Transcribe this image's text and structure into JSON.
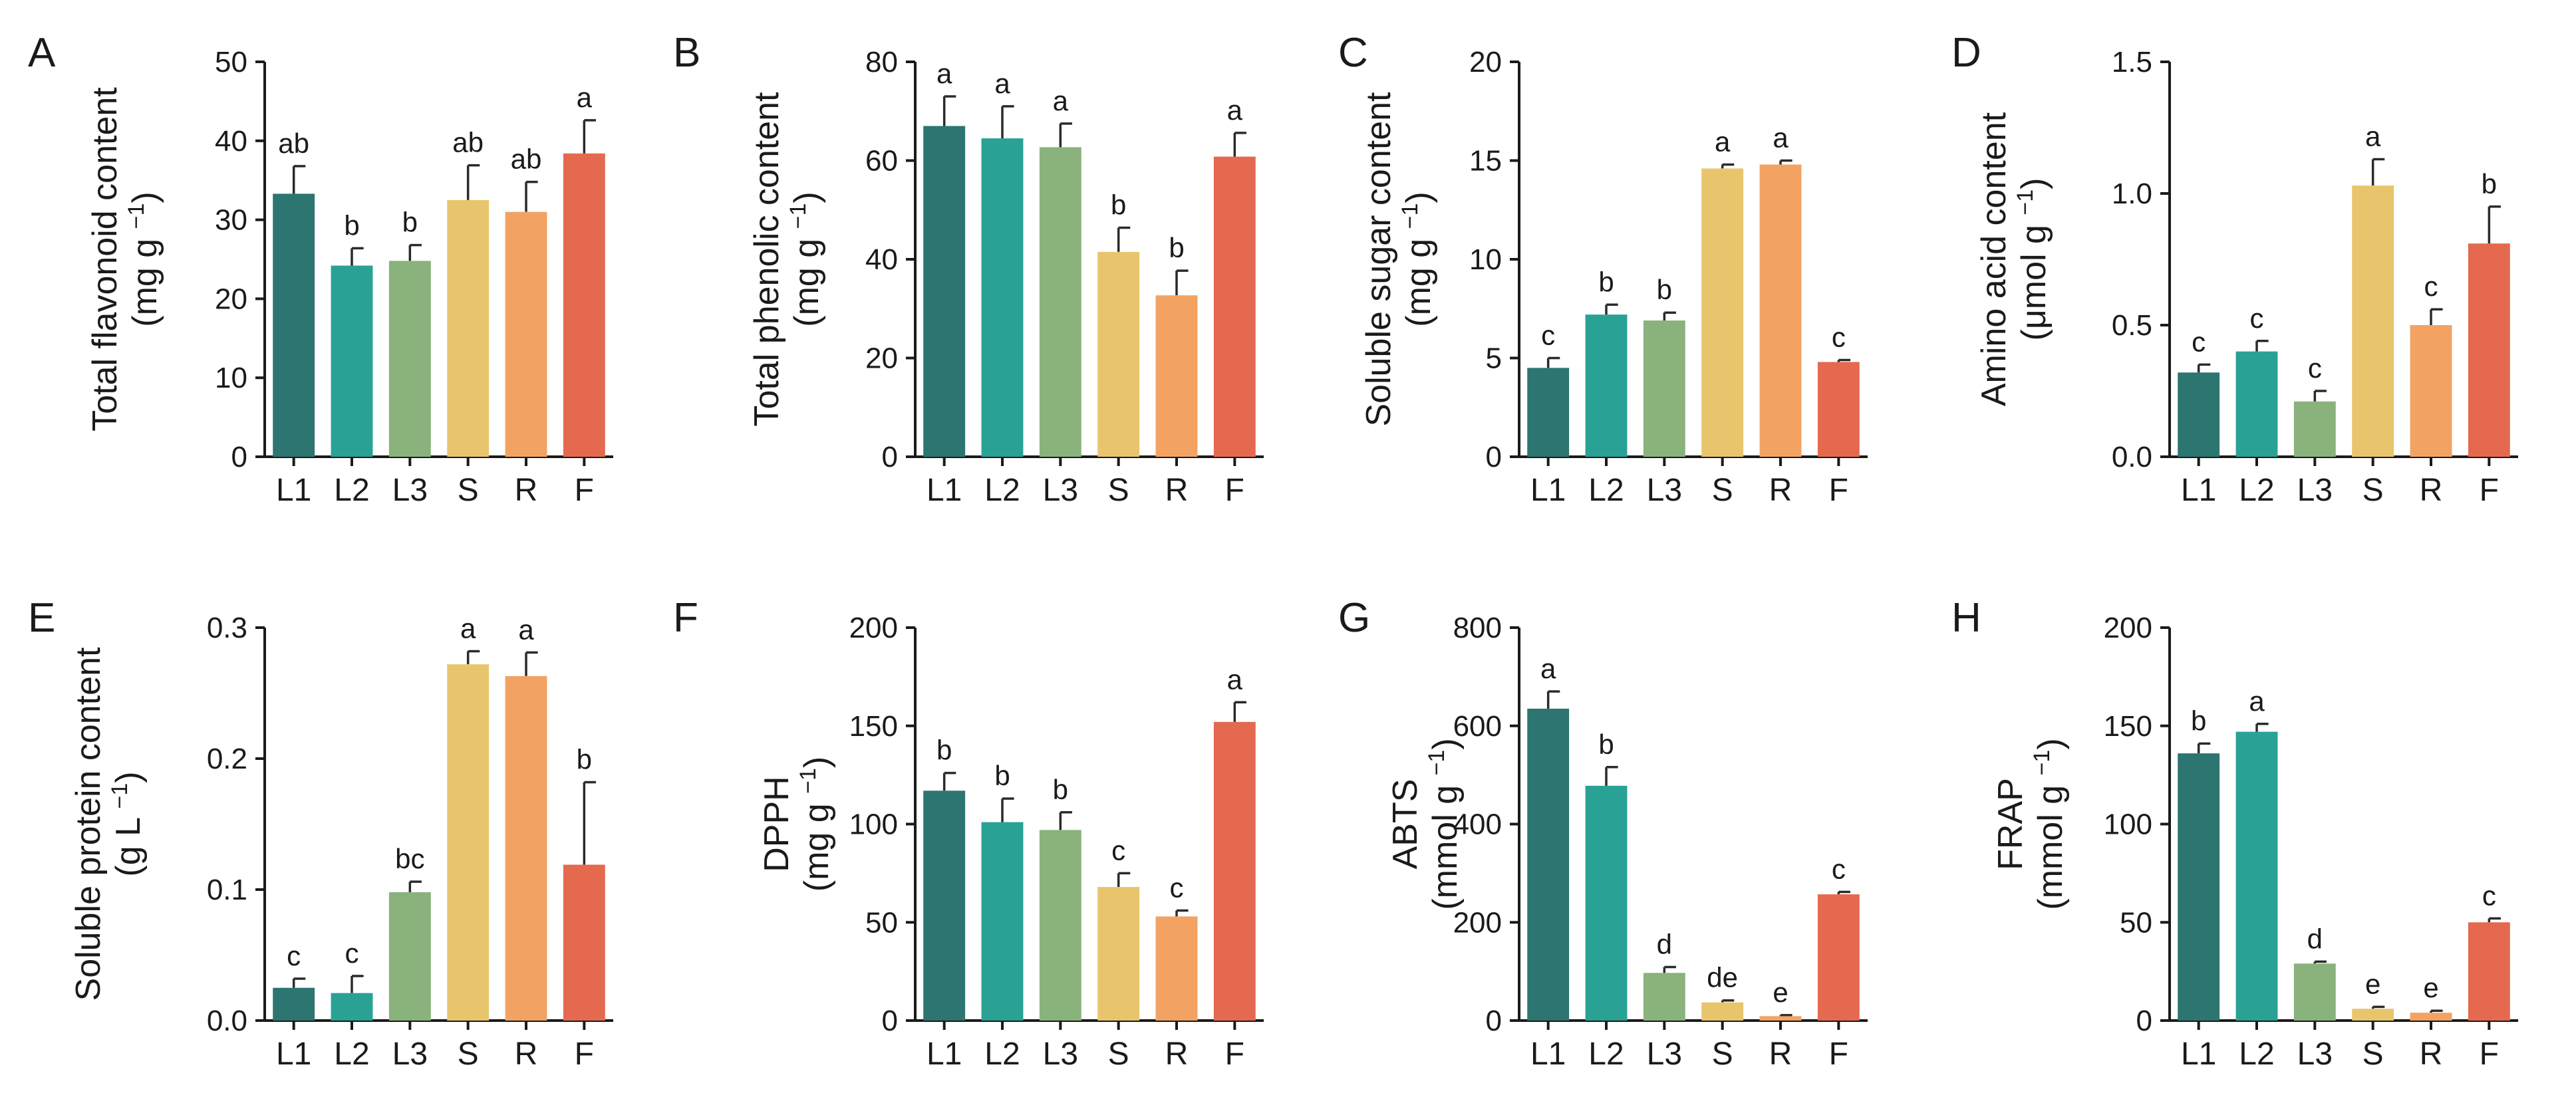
{
  "figure": {
    "categories": [
      "L1",
      "L2",
      "L3",
      "S",
      "R",
      "F"
    ],
    "colors": [
      "#2c7570",
      "#2aa195",
      "#8ab27c",
      "#e8c56d",
      "#f2a363",
      "#e5694f"
    ]
  },
  "chart_data": [
    {
      "type": "bar",
      "panel": "A",
      "ylabel_main": "Total flavonoid content",
      "ylabel_unit_base": "(mg g",
      "ylabel_unit_sup": "−1",
      "ylabel_unit_end": ")",
      "ylim": [
        0,
        50
      ],
      "yticks": [
        0,
        10,
        20,
        30,
        40,
        50
      ],
      "tick_labels": [
        "0",
        "10",
        "20",
        "30",
        "40",
        "50"
      ],
      "categories": [
        "L1",
        "L2",
        "L3",
        "S",
        "R",
        "F"
      ],
      "values": [
        33.3,
        24.2,
        24.8,
        32.5,
        31.0,
        38.4
      ],
      "errors": [
        3.5,
        2.2,
        2.0,
        4.4,
        3.8,
        4.2
      ],
      "letters": [
        "ab",
        "b",
        "b",
        "ab",
        "ab",
        "a"
      ]
    },
    {
      "type": "bar",
      "panel": "B",
      "ylabel_main": "Total phenolic content",
      "ylabel_unit_base": "(mg g",
      "ylabel_unit_sup": "−1",
      "ylabel_unit_end": ")",
      "ylim": [
        0,
        80
      ],
      "yticks": [
        0,
        20,
        40,
        60,
        80
      ],
      "tick_labels": [
        "0",
        "20",
        "40",
        "60",
        "80"
      ],
      "categories": [
        "L1",
        "L2",
        "L3",
        "S",
        "R",
        "F"
      ],
      "values": [
        67.0,
        64.5,
        62.7,
        41.5,
        32.7,
        60.8
      ],
      "errors": [
        6.0,
        6.5,
        4.8,
        4.9,
        5.0,
        4.8
      ],
      "letters": [
        "a",
        "a",
        "a",
        "b",
        "b",
        "a"
      ]
    },
    {
      "type": "bar",
      "panel": "C",
      "ylabel_main": "Soluble sugar content",
      "ylabel_unit_base": "(mg g",
      "ylabel_unit_sup": "−1",
      "ylabel_unit_end": ")",
      "ylim": [
        0,
        20
      ],
      "yticks": [
        0,
        5,
        10,
        15,
        20
      ],
      "tick_labels": [
        "0",
        "5",
        "10",
        "15",
        "20"
      ],
      "categories": [
        "L1",
        "L2",
        "L3",
        "S",
        "R",
        "F"
      ],
      "values": [
        4.5,
        7.2,
        6.9,
        14.6,
        14.8,
        4.8
      ],
      "errors": [
        0.5,
        0.5,
        0.4,
        0.2,
        0.2,
        0.1
      ],
      "letters": [
        "c",
        "b",
        "b",
        "a",
        "a",
        "c"
      ]
    },
    {
      "type": "bar",
      "panel": "D",
      "ylabel_main": "Amino acid content",
      "ylabel_unit_base": "(μmol g",
      "ylabel_unit_sup": "−1",
      "ylabel_unit_end": ")",
      "ylim": [
        0,
        1.5
      ],
      "yticks": [
        0,
        0.5,
        1.0,
        1.5
      ],
      "tick_labels": [
        "0.0",
        "0.5",
        "1.0",
        "1.5"
      ],
      "categories": [
        "L1",
        "L2",
        "L3",
        "S",
        "R",
        "F"
      ],
      "values": [
        0.32,
        0.4,
        0.21,
        1.03,
        0.5,
        0.81
      ],
      "errors": [
        0.03,
        0.04,
        0.04,
        0.1,
        0.06,
        0.14
      ],
      "letters": [
        "c",
        "c",
        "c",
        "a",
        "c",
        "b"
      ]
    },
    {
      "type": "bar",
      "panel": "E",
      "ylabel_main": "Soluble protein content",
      "ylabel_unit_base": "(g L",
      "ylabel_unit_sup": "−1",
      "ylabel_unit_end": ")",
      "ylim": [
        0,
        0.3
      ],
      "yticks": [
        0,
        0.1,
        0.2,
        0.3
      ],
      "tick_labels": [
        "0.0",
        "0.1",
        "0.2",
        "0.3"
      ],
      "categories": [
        "L1",
        "L2",
        "L3",
        "S",
        "R",
        "F"
      ],
      "values": [
        0.025,
        0.021,
        0.098,
        0.272,
        0.263,
        0.119
      ],
      "errors": [
        0.007,
        0.013,
        0.008,
        0.01,
        0.018,
        0.063
      ],
      "letters": [
        "c",
        "c",
        "bc",
        "a",
        "a",
        "b"
      ]
    },
    {
      "type": "bar",
      "panel": "F",
      "ylabel_main": "DPPH",
      "ylabel_unit_base": "(mg g",
      "ylabel_unit_sup": "−1",
      "ylabel_unit_end": ")",
      "ylim": [
        0,
        200
      ],
      "yticks": [
        0,
        50,
        100,
        150,
        200
      ],
      "tick_labels": [
        "0",
        "50",
        "100",
        "150",
        "200"
      ],
      "categories": [
        "L1",
        "L2",
        "L3",
        "S",
        "R",
        "F"
      ],
      "values": [
        117,
        101,
        97,
        68,
        53,
        152
      ],
      "errors": [
        9,
        12,
        9,
        7,
        3,
        10
      ],
      "letters": [
        "b",
        "b",
        "b",
        "c",
        "c",
        "a"
      ]
    },
    {
      "type": "bar",
      "panel": "G",
      "ylabel_main": "ABTS",
      "ylabel_unit_base": "(mmol g",
      "ylabel_unit_sup": "−1",
      "ylabel_unit_end": ")",
      "ylim": [
        0,
        800
      ],
      "yticks": [
        0,
        200,
        400,
        600,
        800
      ],
      "tick_labels": [
        "0",
        "200",
        "400",
        "600",
        "800"
      ],
      "categories": [
        "L1",
        "L2",
        "L3",
        "S",
        "R",
        "F"
      ],
      "values": [
        635,
        478,
        97,
        37,
        9,
        257
      ],
      "errors": [
        35,
        38,
        12,
        4,
        2,
        5
      ],
      "letters": [
        "a",
        "b",
        "d",
        "de",
        "e",
        "c"
      ]
    },
    {
      "type": "bar",
      "panel": "H",
      "ylabel_main": "FRAP",
      "ylabel_unit_base": "(mmol g",
      "ylabel_unit_sup": "−1",
      "ylabel_unit_end": ")",
      "ylim": [
        0,
        200
      ],
      "yticks": [
        0,
        50,
        100,
        150,
        200
      ],
      "tick_labels": [
        "0",
        "50",
        "100",
        "150",
        "200"
      ],
      "categories": [
        "L1",
        "L2",
        "L3",
        "S",
        "R",
        "F"
      ],
      "values": [
        136,
        147,
        29,
        6,
        4,
        50
      ],
      "errors": [
        5,
        4,
        1,
        1,
        1,
        2
      ],
      "letters": [
        "b",
        "a",
        "d",
        "e",
        "e",
        "c"
      ]
    }
  ]
}
